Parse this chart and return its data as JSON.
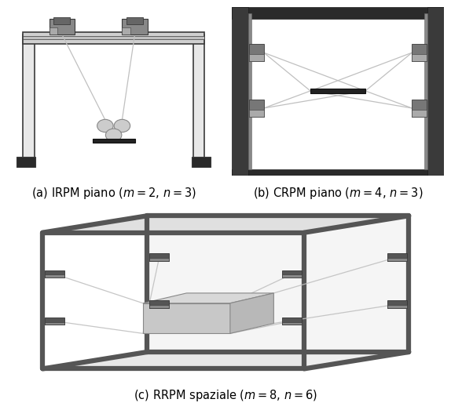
{
  "caption_a": "(a) IRPM piano ($m = 2$, $n = 3$)",
  "caption_b": "(b) CRPM piano ($m = 4$, $n = 3$)",
  "caption_c": "(c) RRPM spaziale ($m = 8$, $n = 6$)",
  "bg_color": "#ffffff",
  "dark_frame": "#3a3a3a",
  "mid_gray": "#888888",
  "light_gray": "#d8d8d8",
  "cable_color": "#c0c0c0",
  "caption_fontsize": 10.5
}
